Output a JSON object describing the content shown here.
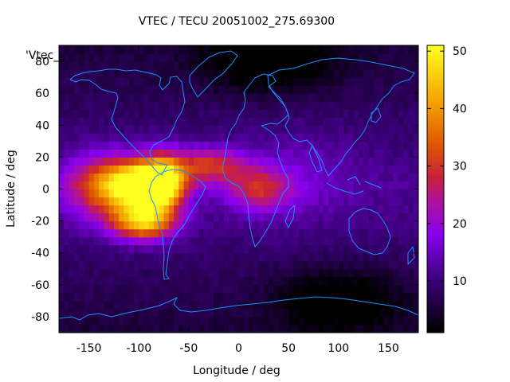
{
  "chart_data": {
    "type": "heatmap",
    "title": "VTEC / TECU 20051002_275.69300",
    "xlabel": "Longitude / deg",
    "ylabel": "Latitude / deg",
    "series_key": "'Vtec_",
    "xlim": [
      -180,
      180
    ],
    "ylim": [
      -90,
      90
    ],
    "xticks": [
      -150,
      -100,
      -50,
      0,
      50,
      100,
      150
    ],
    "yticks": [
      -80,
      -60,
      -40,
      -20,
      0,
      20,
      40,
      60,
      80
    ],
    "colorbar": {
      "range": [
        1,
        51
      ],
      "ticks": [
        10,
        20,
        30,
        40,
        50
      ],
      "colormap": "gnuplot pm3d black-purple-red-orange-yellow"
    },
    "grid": false,
    "ionospheric_peaks": [
      {
        "lon": -95,
        "lat": 3,
        "value": 50,
        "sx": 22,
        "sy": 9
      },
      {
        "lon": -95,
        "lat": -20,
        "value": 44,
        "sx": 22,
        "sy": 8
      },
      {
        "lon": -75,
        "lat": 5,
        "value": 40,
        "sx": 15,
        "sy": 12
      },
      {
        "lon": -130,
        "lat": 2,
        "value": 34,
        "sx": 30,
        "sy": 14
      },
      {
        "lon": -30,
        "lat": 15,
        "value": 27,
        "sx": 25,
        "sy": 8
      },
      {
        "lon": 20,
        "lat": 0,
        "value": 23,
        "sx": 22,
        "sy": 10
      },
      {
        "lon": 60,
        "lat": 10,
        "value": 10,
        "sx": 40,
        "sy": 20
      }
    ],
    "background_level": 12,
    "low_regions": [
      {
        "lon": 100,
        "lat": -68,
        "value": 1
      },
      {
        "lon": 30,
        "lat": 80,
        "value": 3
      }
    ]
  },
  "colors": {
    "coastline": "#1e90ff",
    "axis": "#000000",
    "background": "#ffffff"
  }
}
